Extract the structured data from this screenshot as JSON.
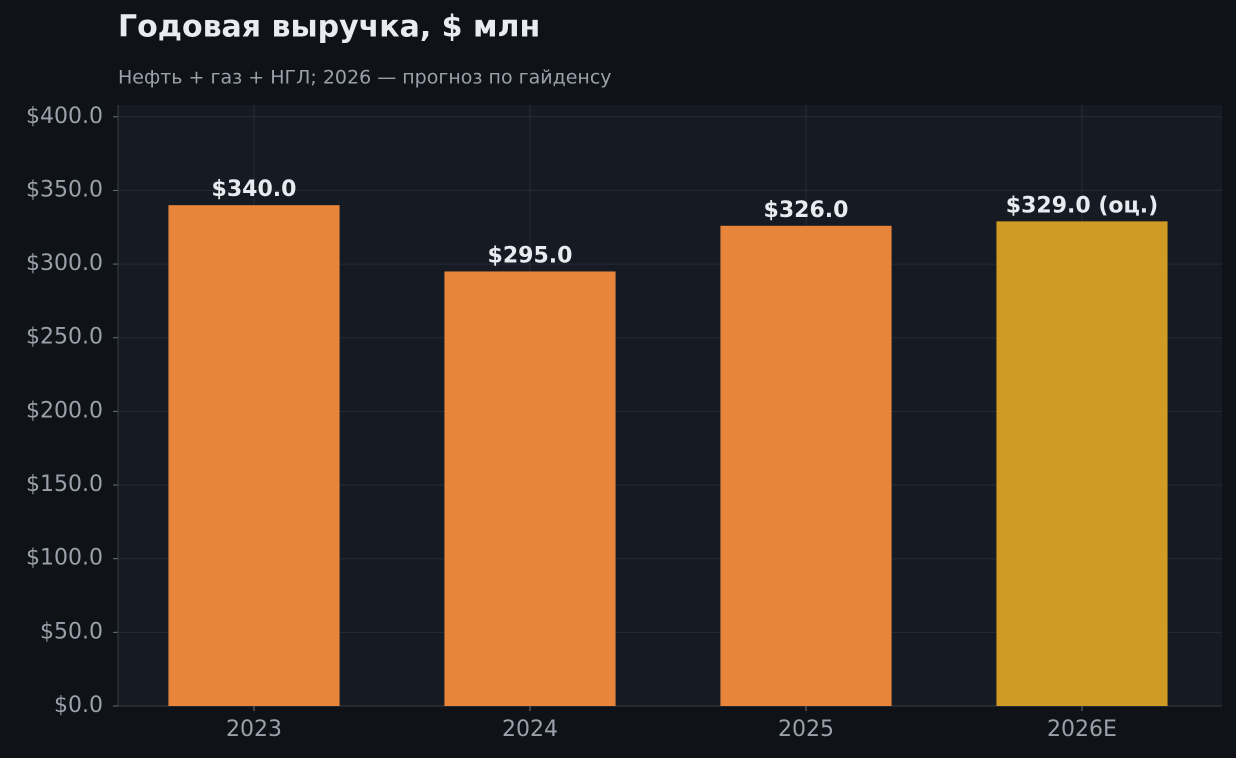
{
  "chart_data": {
    "type": "bar",
    "title": "Годовая выручка, $ млн",
    "subtitle": "Нефть + газ + НГЛ; 2026 — прогноз по гайденсу",
    "categories": [
      "2023",
      "2024",
      "2025",
      "2026E"
    ],
    "values": [
      340,
      295,
      326,
      329
    ],
    "value_labels": [
      "$340.0",
      "$295.0",
      "$326.0",
      "$329.0 (оц.)"
    ],
    "colors": [
      "#e8853b",
      "#e8853b",
      "#e8853b",
      "#d09b22"
    ],
    "ylim": [
      0,
      408
    ],
    "yticks": [
      {
        "value": 0,
        "label": "$0.0"
      },
      {
        "value": 50,
        "label": "$50.0"
      },
      {
        "value": 100,
        "label": "$100.0"
      },
      {
        "value": 150,
        "label": "$150.0"
      },
      {
        "value": 200,
        "label": "$200.0"
      },
      {
        "value": 250,
        "label": "$250.0"
      },
      {
        "value": 300,
        "label": "$300.0"
      },
      {
        "value": 350,
        "label": "$350.0"
      },
      {
        "value": 400,
        "label": "$400.0"
      }
    ],
    "grid": true
  }
}
